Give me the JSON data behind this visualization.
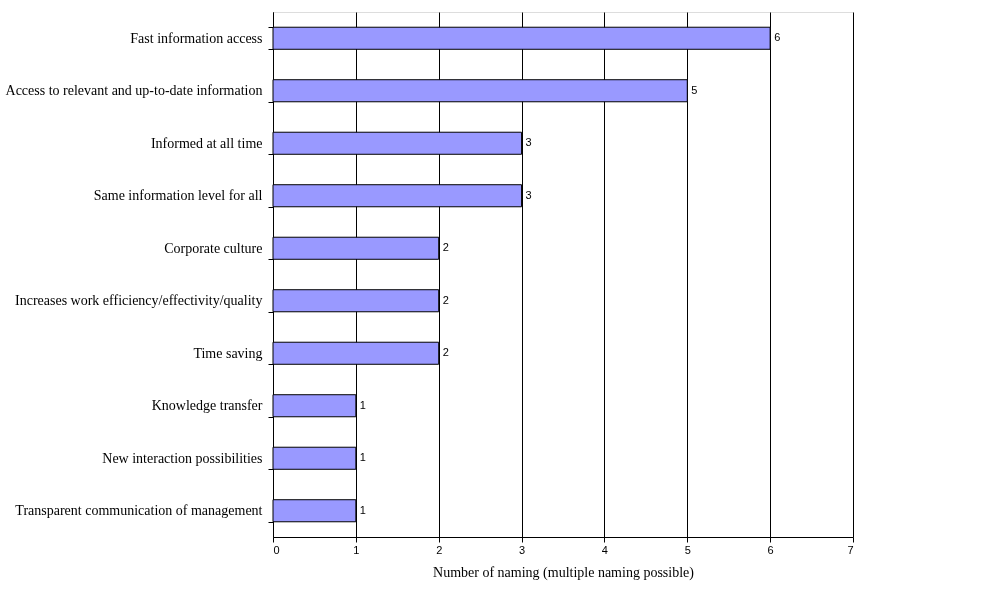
{
  "chart_data": {
    "type": "bar",
    "orientation": "horizontal",
    "xlabel": "Number of naming (multiple naming possible)",
    "categories": [
      "Fast information access",
      "Access to relevant and up-to-date information",
      "Informed at all time",
      "Same information level for all",
      "Corporate culture",
      "Increases work efficiency/effectivity/quality",
      "Time saving",
      "Knowledge transfer",
      "New interaction possibilities",
      "Transparent communication of management"
    ],
    "values": [
      6,
      5,
      3,
      3,
      2,
      2,
      2,
      1,
      1,
      1
    ],
    "color": "#9999ff",
    "xlim": [
      0,
      7
    ],
    "xticks": [
      0,
      1,
      2,
      3,
      4,
      5,
      6,
      7
    ],
    "grid": "x",
    "data_labels": true
  }
}
